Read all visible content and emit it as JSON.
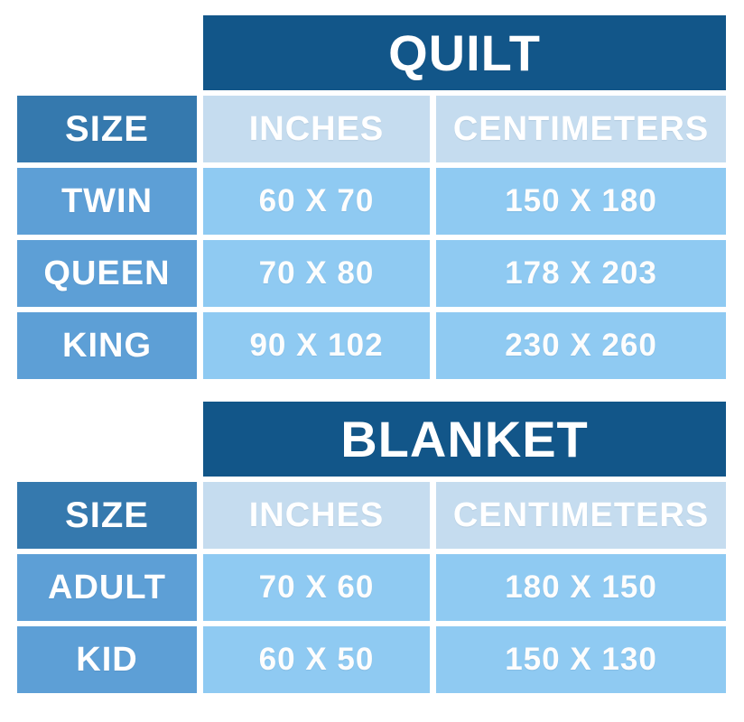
{
  "page": {
    "background": "#ffffff"
  },
  "colors": {
    "title_bar_bg": "#125689",
    "size_header_bg": "#3579ae",
    "column_header_bg": "#c5dcef",
    "row_label_bg": "#5d9fd6",
    "data_cell_bg": "#8fcaf2",
    "text": "#ffffff"
  },
  "tables": [
    {
      "title": "QUILT",
      "columns": [
        "SIZE",
        "INCHES",
        "CENTIMETERS"
      ],
      "rows": [
        {
          "label": "TWIN",
          "inches": "60 X 70",
          "centimeters": "150 X 180"
        },
        {
          "label": "QUEEN",
          "inches": "70 X 80",
          "centimeters": "178 X 203"
        },
        {
          "label": "KING",
          "inches": "90 X 102",
          "centimeters": "230 X 260"
        }
      ]
    },
    {
      "title": "BLANKET",
      "columns": [
        "SIZE",
        "INCHES",
        "CENTIMETERS"
      ],
      "rows": [
        {
          "label": "ADULT",
          "inches": "70 X 60",
          "centimeters": "180 X 150"
        },
        {
          "label": "KID",
          "inches": "60 X 50",
          "centimeters": "150 X 130"
        }
      ]
    }
  ],
  "chart_data": [
    {
      "type": "table",
      "title": "QUILT",
      "columns": [
        "SIZE",
        "INCHES",
        "CENTIMETERS"
      ],
      "rows": [
        [
          "TWIN",
          "60 X 70",
          "150 X 180"
        ],
        [
          "QUEEN",
          "70 X 80",
          "178 X 203"
        ],
        [
          "KING",
          "90 X 102",
          "230 X 260"
        ]
      ]
    },
    {
      "type": "table",
      "title": "BLANKET",
      "columns": [
        "SIZE",
        "INCHES",
        "CENTIMETERS"
      ],
      "rows": [
        [
          "ADULT",
          "70 X 60",
          "180 X 150"
        ],
        [
          "KID",
          "60 X 50",
          "150 X 130"
        ]
      ]
    }
  ]
}
